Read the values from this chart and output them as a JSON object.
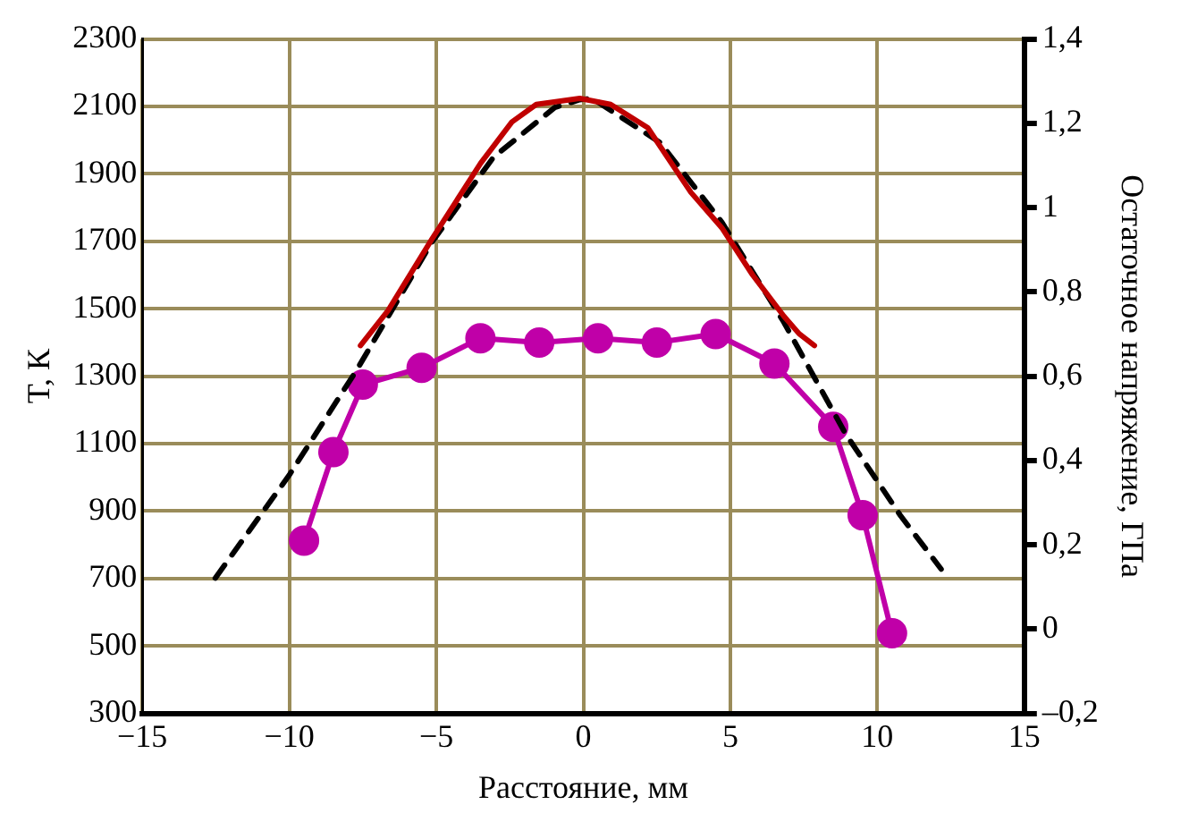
{
  "chart_data": {
    "type": "line",
    "xlabel": "Расстояние, мм",
    "ylabel": "T, К",
    "y2label": "Остаточное напряжение, ГПа",
    "xlim": [
      -15,
      15
    ],
    "xticks": [
      {
        "value": -15,
        "label": "−15"
      },
      {
        "value": -10,
        "label": "−10"
      },
      {
        "value": -5,
        "label": "−5"
      },
      0,
      5,
      10,
      15
    ],
    "ylim": [
      300,
      2300
    ],
    "yticks": [
      300,
      500,
      700,
      900,
      1100,
      1300,
      1500,
      1700,
      1900,
      2100,
      2300
    ],
    "y2lim": [
      -0.2,
      1.4
    ],
    "y2ticks": [
      {
        "value": -0.2,
        "label": "–0,2"
      },
      0,
      {
        "value": 0.2,
        "label": "0,2"
      },
      {
        "value": 0.4,
        "label": "0,4"
      },
      {
        "value": 0.6,
        "label": "0,6"
      },
      {
        "value": 0.8,
        "label": "0,8"
      },
      1,
      {
        "value": 1.2,
        "label": "1,2"
      },
      {
        "value": 1.4,
        "label": "1,4"
      }
    ],
    "grid": true,
    "legend": false,
    "series": [
      {
        "color": "#c00000",
        "line_style": "solid",
        "marker": "none",
        "x": [
          -7.58,
          -6.64,
          -5.16,
          -3.49,
          -2.43,
          -1.6,
          -0.12,
          0.93,
          2.19,
          3.66,
          4.71,
          5.76,
          6.82,
          7.34,
          7.86
        ],
        "values": [
          1391,
          1495,
          1705,
          1932,
          2054,
          2106,
          2124,
          2106,
          2037,
          1845,
          1740,
          1600,
          1478,
          1426,
          1391
        ]
      },
      {
        "color": "#000000",
        "line_style": "dashed",
        "marker": "none",
        "x": [
          -12.52,
          -10,
          -7.69,
          -5.16,
          -3.06,
          -0.97,
          -0.12,
          0.3,
          2.61,
          4.71,
          6.82,
          8.92,
          10.8,
          12.17
        ],
        "values": [
          701,
          1007,
          1321,
          1696,
          1949,
          2097,
          2120,
          2124,
          1993,
          1757,
          1460,
          1129,
          885,
          728
        ]
      },
      {
        "color": "#c000a8",
        "line_style": "solid",
        "marker": "circle",
        "axis": "y2",
        "x": [
          -9.5,
          -8.5,
          -7.5,
          -5.5,
          -3.5,
          -1.5,
          0.5,
          2.5,
          4.5,
          6.5,
          8.5,
          9.5,
          10.5
        ],
        "values": [
          0.21,
          0.42,
          0.58,
          0.62,
          0.69,
          0.68,
          0.69,
          0.68,
          0.7,
          0.63,
          0.48,
          0.27,
          -0.01
        ]
      }
    ]
  }
}
